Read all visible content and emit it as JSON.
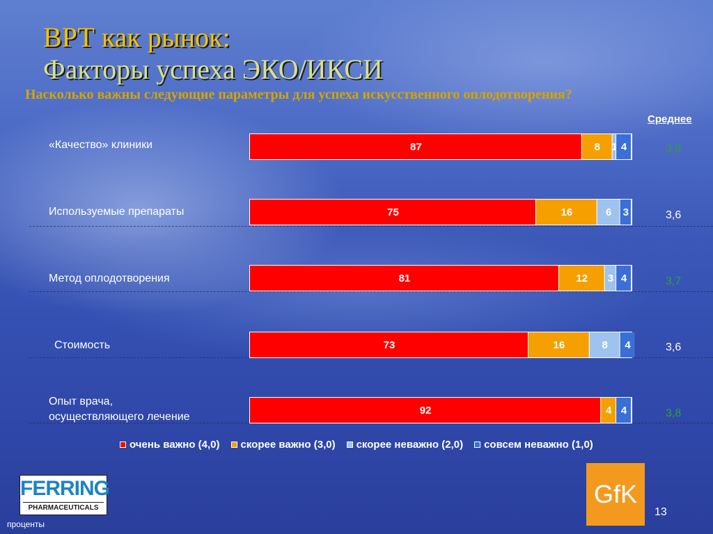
{
  "title": {
    "line1": "ВРТ как рынок:",
    "line2": "Факторы успеха ЭКО/ИКСИ"
  },
  "question": "Насколько важны следующие параметры для успеха искусственного оплодотворения?",
  "avg_header": "Среднее",
  "colors": {
    "very_important": "#ff0000",
    "rather_important": "#f5a000",
    "rather_unimportant": "#9dc3ee",
    "not_important": "#3a6fd8",
    "avg_highlight": "#2ea23a",
    "avg_normal": "#ffffff"
  },
  "chart_data": {
    "type": "bar",
    "orientation": "horizontal",
    "stacked": true,
    "categories": [
      "«Качество» клиники",
      "Используемые препараты",
      "Метод оплодотворения",
      "Стоимость",
      "Опыт врача, осуществляющего лечение"
    ],
    "series": [
      {
        "name": "очень важно (4,0)",
        "values": [
          87,
          75,
          81,
          73,
          92
        ]
      },
      {
        "name": "скорее важно (3,0)",
        "values": [
          8,
          16,
          12,
          16,
          4
        ]
      },
      {
        "name": "скорее неважно (2,0)",
        "values": [
          1,
          6,
          3,
          8,
          0
        ]
      },
      {
        "name": "совсем неважно (1,0)",
        "values": [
          4,
          3,
          4,
          4,
          4
        ]
      }
    ],
    "averages": [
      "3,8",
      "3,6",
      "3,7",
      "3,6",
      "3,8"
    ],
    "averages_highlighted": [
      true,
      false,
      true,
      false,
      true
    ],
    "xlim": [
      0,
      100
    ],
    "unit": "проценты",
    "legend_position": "bottom"
  },
  "rows": {
    "label_0": "«Качество» клиники",
    "label_1": "Используемые препараты",
    "label_2": "Метод оплодотворения",
    "label_3": "Стоимость",
    "label_4a": "Опыт врача,",
    "label_4b": "осуществляющего лечение"
  },
  "legend": [
    "очень важно (4,0)",
    "скорее важно (3,0)",
    "скорее неважно (2,0)",
    "совсем неважно (1,0)"
  ],
  "brand": {
    "ferring_name": "FERRING",
    "ferring_sub": "PHARMACEUTICALS",
    "gfk": "GfK"
  },
  "footnote": "проценты",
  "page_number": "13"
}
